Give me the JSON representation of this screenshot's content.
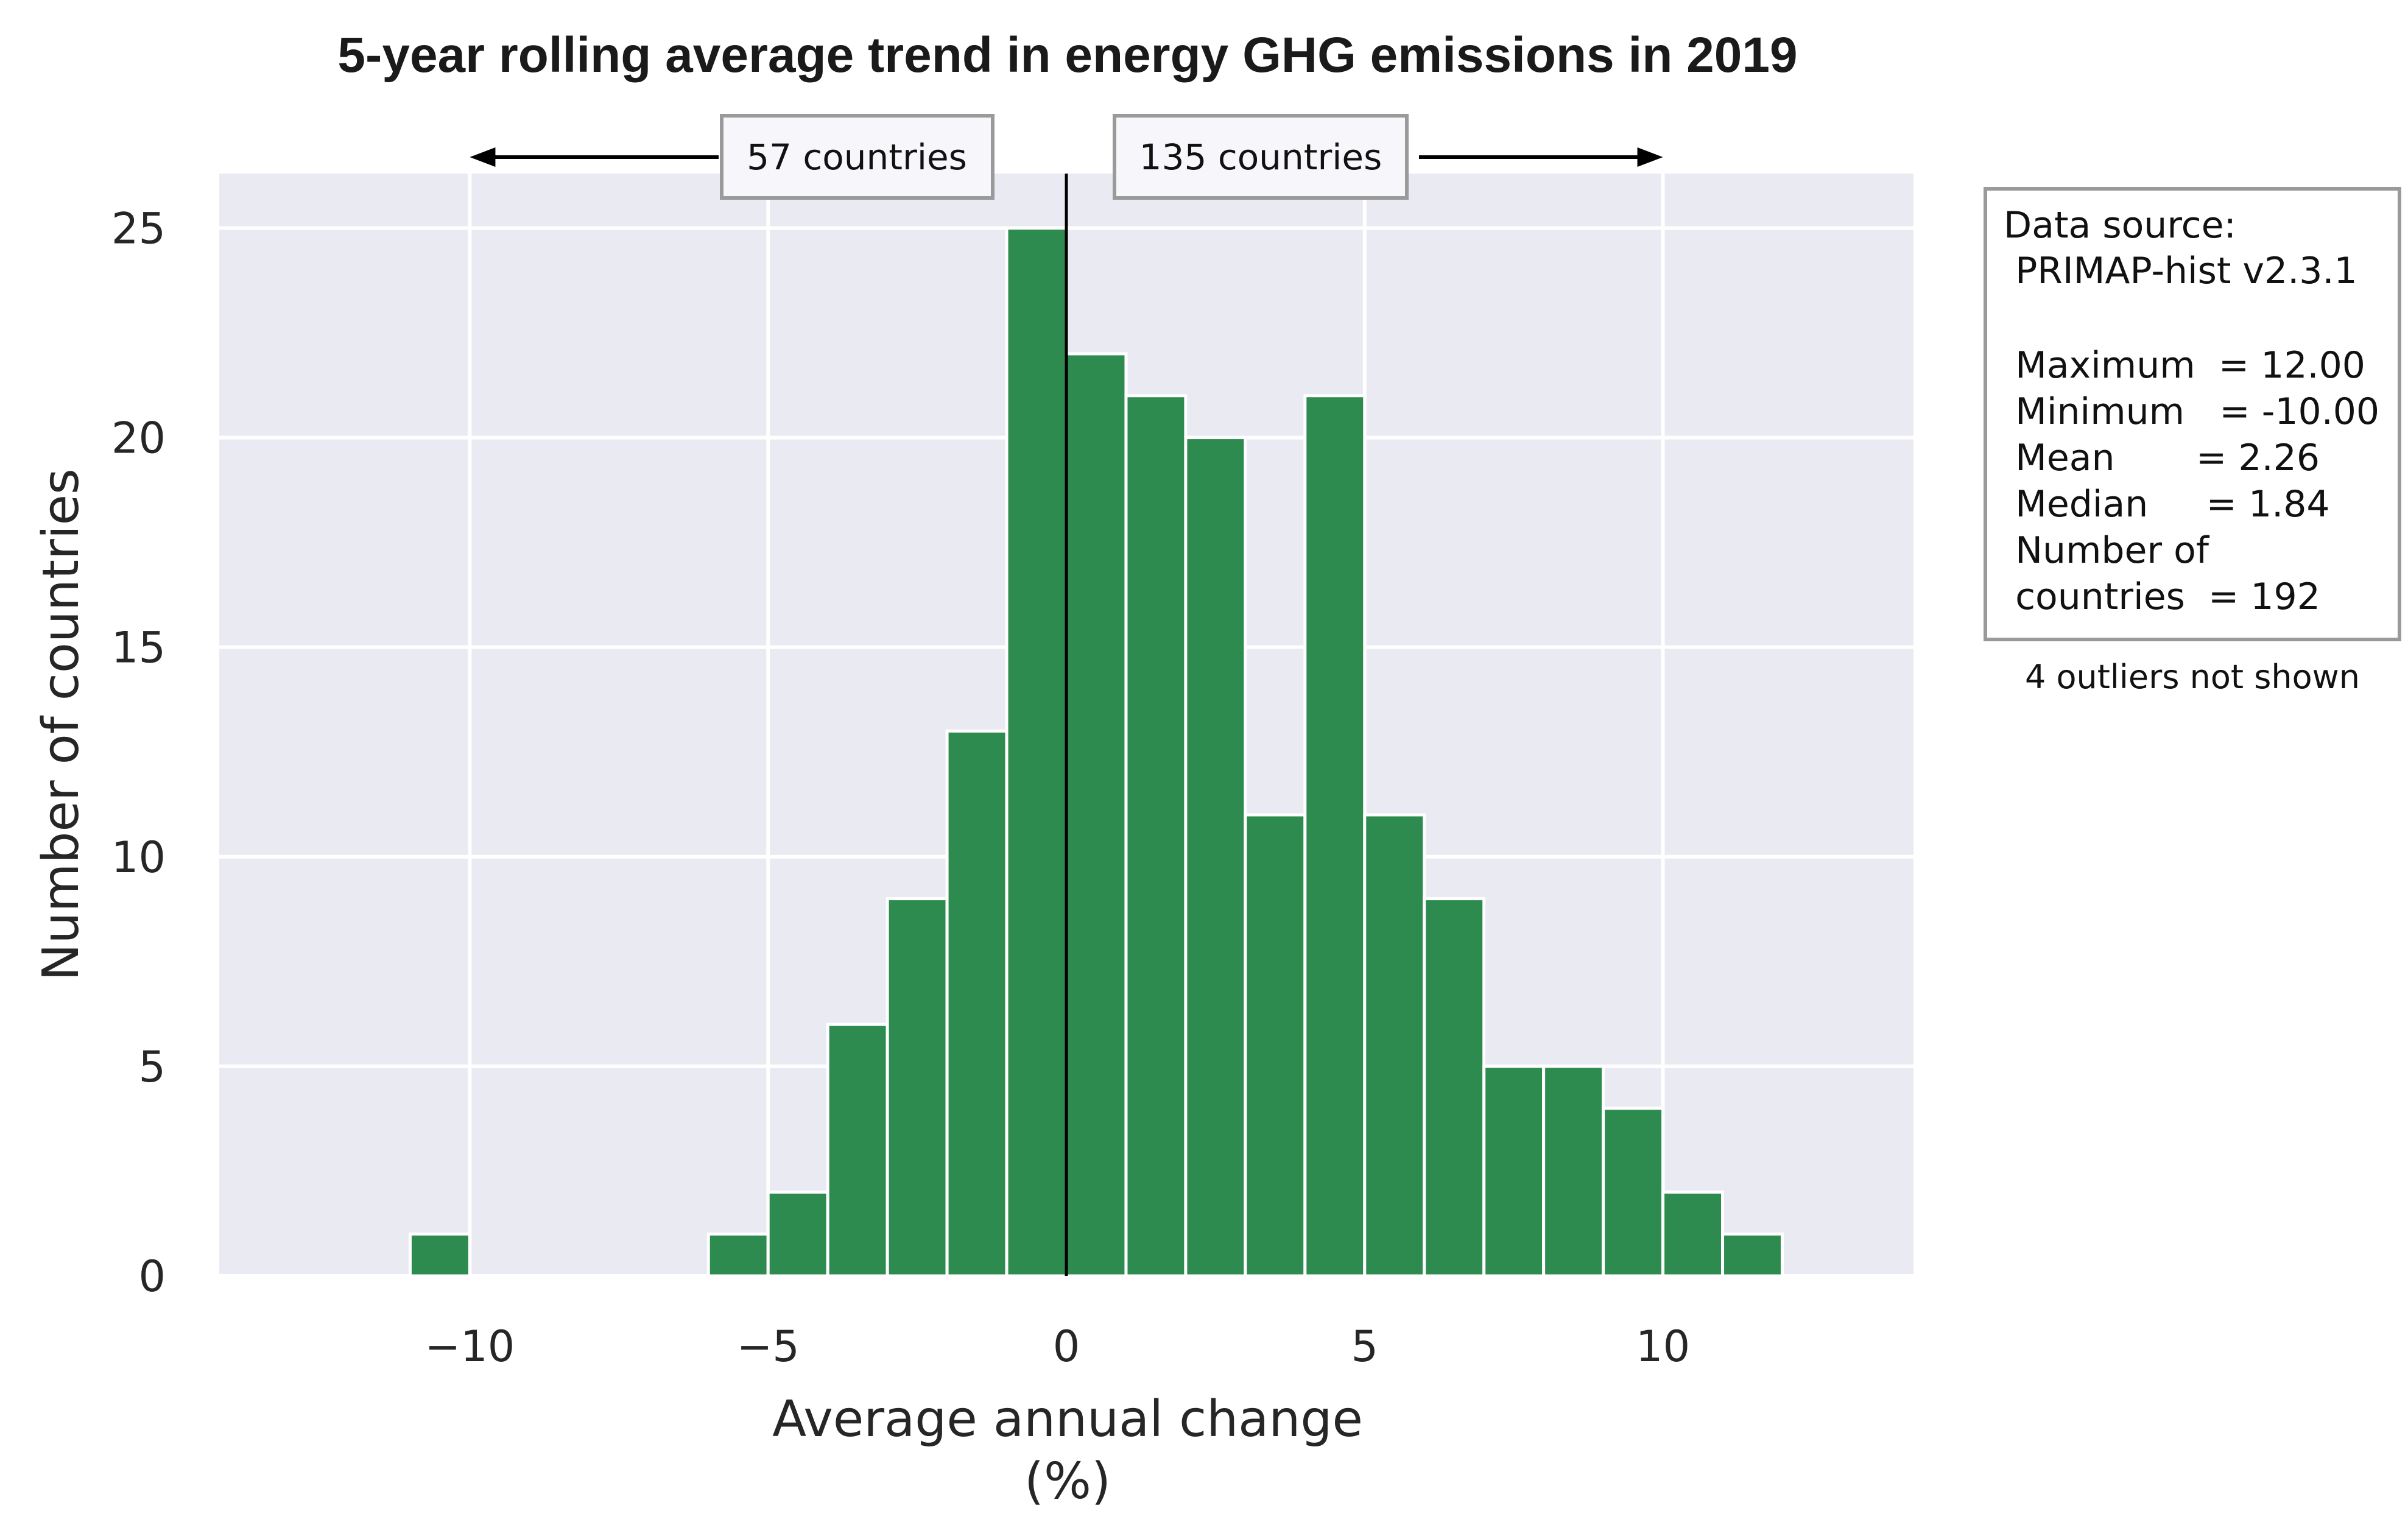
{
  "chart_data": {
    "type": "bar",
    "title": "5-year rolling average trend in energy GHG emissions in 2019",
    "xlabel_line1": "Average annual change",
    "xlabel_line2": "(%)",
    "ylabel": "Number of countries",
    "xlim": [
      -14.2,
      14.2
    ],
    "ylim": [
      0,
      26.3
    ],
    "x_ticks": [
      -10,
      -5,
      0,
      5,
      10
    ],
    "x_tick_labels": [
      "−10",
      "−5",
      "0",
      "5",
      "10"
    ],
    "y_ticks": [
      0,
      5,
      10,
      15,
      20,
      25
    ],
    "y_tick_labels": [
      "0",
      "5",
      "10",
      "15",
      "20",
      "25"
    ],
    "grid": true,
    "bar_color": "#2e8b4f",
    "background_color": "#eaeaf2",
    "bins": [
      {
        "x0": -11,
        "x1": -10,
        "count": 1
      },
      {
        "x0": -6,
        "x1": -5,
        "count": 1
      },
      {
        "x0": -5,
        "x1": -4,
        "count": 2
      },
      {
        "x0": -4,
        "x1": -3,
        "count": 6
      },
      {
        "x0": -3,
        "x1": -2,
        "count": 9
      },
      {
        "x0": -2,
        "x1": -1,
        "count": 13
      },
      {
        "x0": -1,
        "x1": 0,
        "count": 25
      },
      {
        "x0": 0,
        "x1": 1,
        "count": 22
      },
      {
        "x0": 1,
        "x1": 2,
        "count": 21
      },
      {
        "x0": 2,
        "x1": 3,
        "count": 20
      },
      {
        "x0": 3,
        "x1": 4,
        "count": 11
      },
      {
        "x0": 4,
        "x1": 5,
        "count": 21
      },
      {
        "x0": 5,
        "x1": 6,
        "count": 11
      },
      {
        "x0": 6,
        "x1": 7,
        "count": 9
      },
      {
        "x0": 7,
        "x1": 8,
        "count": 5
      },
      {
        "x0": 8,
        "x1": 9,
        "count": 5
      },
      {
        "x0": 9,
        "x1": 10,
        "count": 4
      },
      {
        "x0": 10,
        "x1": 11,
        "count": 2
      },
      {
        "x0": 11,
        "x1": 12,
        "count": 1
      }
    ],
    "zero_line_x": 0,
    "annotations": {
      "left_count_label": "57 countries",
      "right_count_label": "135 countries",
      "left_arrow_to_x": -10,
      "right_arrow_to_x": 10
    },
    "stats_box": {
      "lines": [
        "Data source:",
        " PRIMAP-hist v2.3.1",
        "",
        " Maximum  = 12.00",
        " Minimum   = -10.00",
        " Mean       = 2.26",
        " Median     = 1.84",
        " Number of",
        " countries  = 192"
      ]
    },
    "outliers_note": "4 outliers not shown"
  }
}
